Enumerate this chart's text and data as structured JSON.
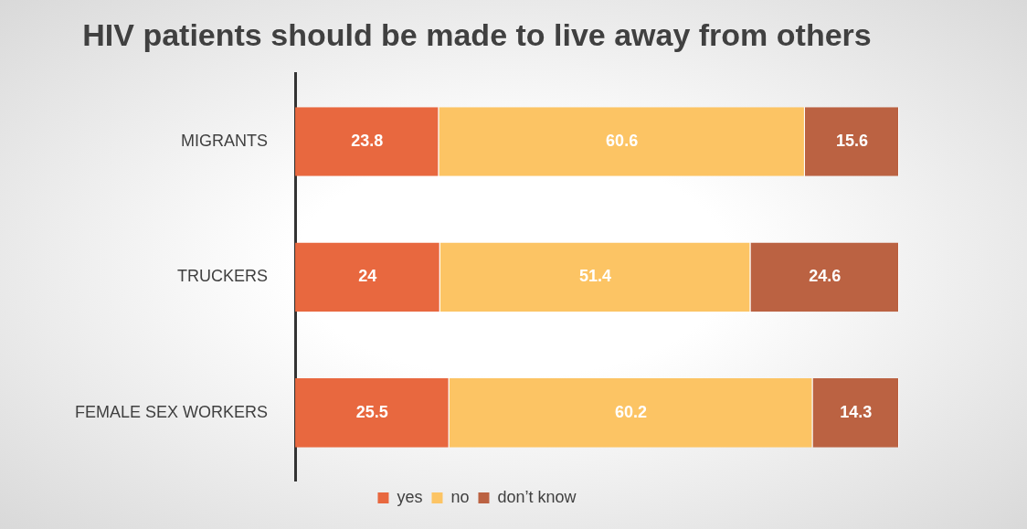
{
  "chart_data": {
    "type": "bar",
    "orientation": "horizontal",
    "stacked": true,
    "title": "HIV patients should be made to live away from others",
    "categories": [
      "MIGRANTS",
      "TRUCKERS",
      "FEMALE SEX WORKERS"
    ],
    "series": [
      {
        "name": "yes",
        "color": "#e8683f",
        "values": [
          23.8,
          24,
          25.5
        ]
      },
      {
        "name": "no",
        "color": "#fcc464",
        "values": [
          60.6,
          51.4,
          60.2
        ]
      },
      {
        "name": "don’t know",
        "color": "#bb6242",
        "values": [
          15.6,
          24.6,
          14.3
        ]
      }
    ],
    "xlim": [
      0,
      100
    ],
    "data_labels": true,
    "legend": "bottom",
    "tick_labels": "y"
  }
}
